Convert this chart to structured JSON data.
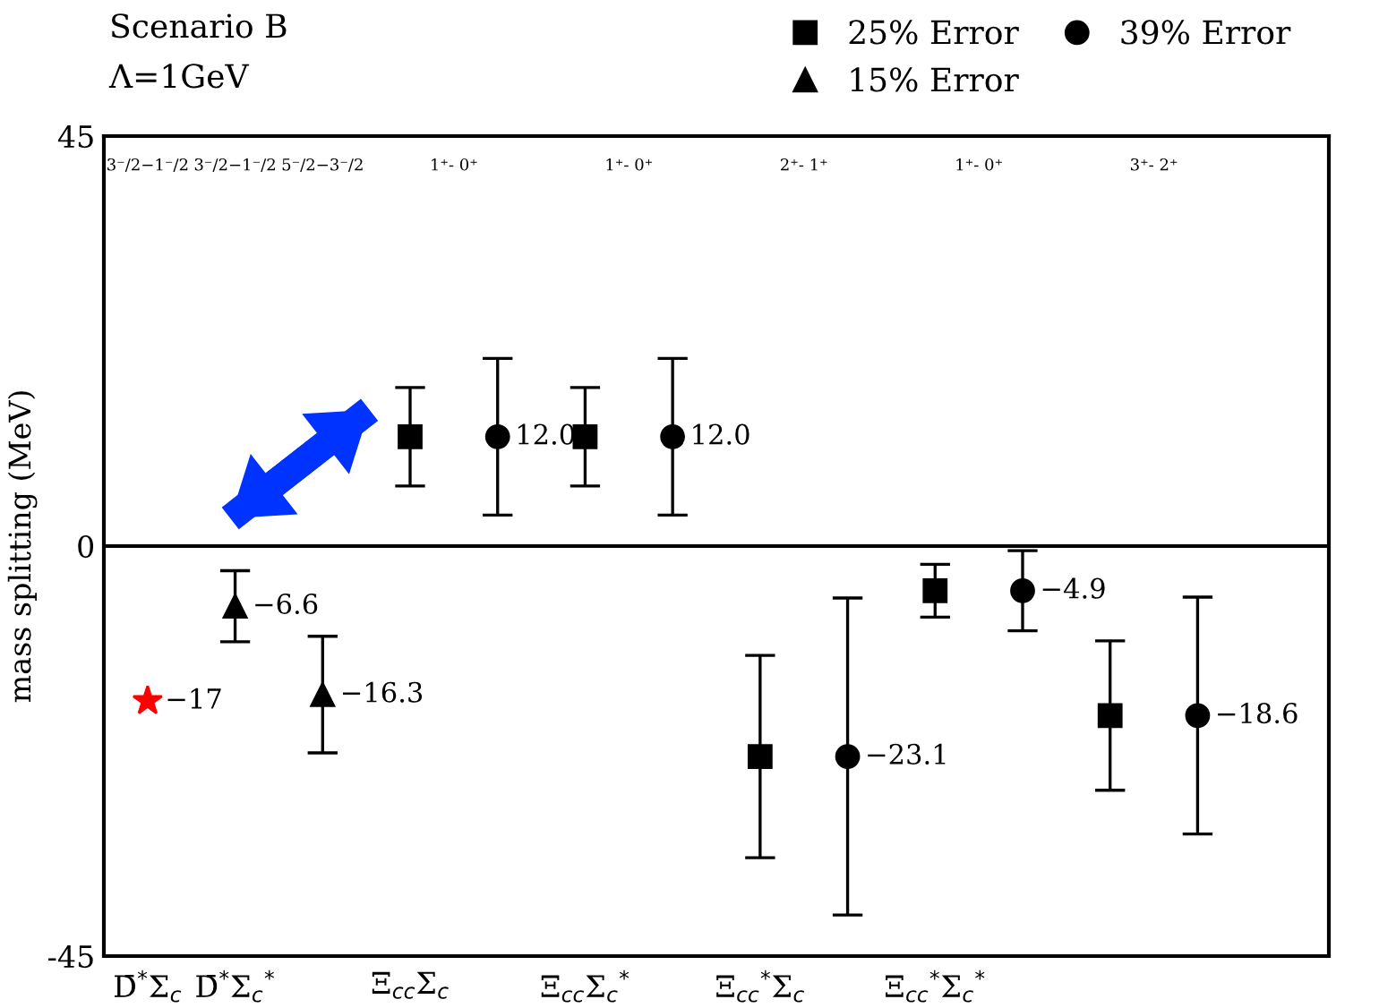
{
  "chart_data": {
    "type": "scatter",
    "title": "Scenario B",
    "subtitle": "Λ=1GeV",
    "ylabel": "mass splitting (MeV)",
    "categories": [
      "D̄$^{*}$Σ$_{c}$",
      "D̄$^{*}$Σ$_{c}$$^{*}$",
      null,
      "Ξ$_{cc}$Σ$_{c}$",
      null,
      "Ξ$_{cc}$Σ$_{c}$$^{*}$",
      null,
      "Ξ$_{cc}$$^{*}$Σ$_{c}$",
      null,
      "Ξ$_{cc}$$^{*}$Σ$_{c}$$^{*}$",
      null,
      null,
      null
    ],
    "ylim": [
      -45,
      45
    ],
    "yticks": [
      -45,
      0,
      45
    ],
    "grid": false,
    "legend": "top right",
    "series": [
      {
        "name": "25% Error",
        "color": "#000000",
        "marker": "square",
        "values": [
          null,
          null,
          null,
          12.0,
          null,
          12.0,
          null,
          -23.1,
          null,
          -4.9,
          null,
          -18.6,
          null
        ],
        "errors": [
          null,
          null,
          null,
          5.4,
          null,
          5.4,
          null,
          11.1,
          null,
          2.9,
          null,
          8.2,
          null
        ]
      },
      {
        "name": "15% Error",
        "color": "#000000",
        "marker": "triangle",
        "values": [
          null,
          -6.6,
          -16.3,
          null,
          null,
          null,
          null,
          null,
          null,
          null,
          null,
          null,
          null
        ],
        "errors": [
          null,
          3.9,
          6.4,
          null,
          null,
          null,
          null,
          null,
          null,
          null,
          null,
          null,
          null
        ],
        "value_labels": [
          null,
          "−6.6",
          "−16.3",
          null,
          null,
          null,
          null,
          null,
          null,
          null,
          null,
          null,
          null
        ]
      },
      {
        "name": "39% Error",
        "color": "#000000",
        "marker": "circle",
        "values": [
          null,
          null,
          null,
          null,
          12.0,
          null,
          12.0,
          null,
          -23.1,
          null,
          -4.9,
          null,
          -18.6
        ],
        "errors": [
          null,
          null,
          null,
          null,
          8.6,
          null,
          8.6,
          null,
          17.4,
          null,
          4.4,
          null,
          13.0
        ],
        "value_labels": [
          null,
          null,
          null,
          null,
          "12.0",
          null,
          "12.0",
          null,
          "−23.1",
          null,
          "−4.9",
          null,
          "−18.6"
        ]
      },
      {
        "color": "#ff0000",
        "marker": "star",
        "values": [
          -17,
          null,
          null,
          null,
          null,
          null,
          null,
          null,
          null,
          null,
          null,
          null,
          null
        ],
        "value_labels": [
          "−17",
          null,
          null,
          null,
          null,
          null,
          null,
          null,
          null,
          null,
          null,
          null,
          null
        ]
      }
    ],
    "ref_lines": [
      {
        "axis": "y",
        "value": 0,
        "color": "#000000",
        "line_style": "solid"
      }
    ],
    "annotations": [
      "3⁻/2−1⁻/2",
      "3⁻/2−1⁻/2",
      "5⁻/2−3⁻/2",
      "1⁺- 0⁺",
      "1⁺- 0⁺",
      "2⁺- 1⁺",
      "1⁺- 0⁺",
      "3⁺- 2⁺"
    ]
  }
}
